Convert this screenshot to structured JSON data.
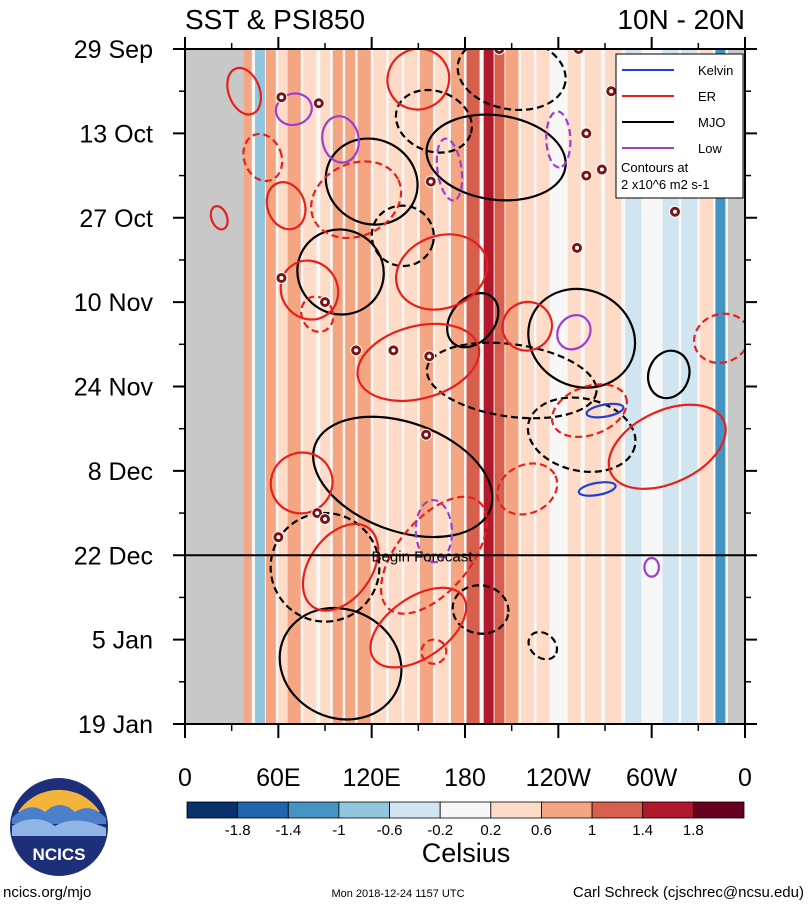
{
  "header": {
    "title": "SST & PSI850",
    "region": "10N - 20N"
  },
  "chart_data": {
    "type": "heatmap",
    "title": "SST & PSI850",
    "region": "10N - 20N",
    "x_ticks": [
      {
        "lon": 0,
        "label": "0"
      },
      {
        "lon": 60,
        "label": "60E"
      },
      {
        "lon": 120,
        "label": "120E"
      },
      {
        "lon": 180,
        "label": "180"
      },
      {
        "lon": 240,
        "label": "120W"
      },
      {
        "lon": 300,
        "label": "60W"
      },
      {
        "lon": 360,
        "label": "0"
      }
    ],
    "xlim": [
      0,
      360
    ],
    "y_ticks": [
      {
        "day": 0,
        "label": "29 Sep"
      },
      {
        "day": 14,
        "label": "13 Oct"
      },
      {
        "day": 28,
        "label": "27 Oct"
      },
      {
        "day": 42,
        "label": "10 Nov"
      },
      {
        "day": 56,
        "label": "24 Nov"
      },
      {
        "day": 70,
        "label": "8 Dec"
      },
      {
        "day": 84,
        "label": "22 Dec"
      },
      {
        "day": 98,
        "label": "5 Jan"
      },
      {
        "day": 112,
        "label": "19 Jan"
      }
    ],
    "ylim": [
      0,
      112
    ],
    "forecast": {
      "day": 84,
      "label": "Begin Forecast"
    },
    "legend": {
      "placement": "top-right",
      "entries": [
        {
          "name": "Kelvin",
          "color": "#1f3fd6",
          "style": "solid"
        },
        {
          "name": "ER",
          "color": "#e8201c",
          "style": "solid"
        },
        {
          "name": "MJO",
          "color": "#000000",
          "style": "solid"
        },
        {
          "name": "Low",
          "color": "#9b3fd0",
          "style": "solid"
        }
      ],
      "note_lines": [
        "Contours at",
        "2 x10^6 m2 s-1"
      ]
    },
    "colorbar": {
      "unit": "Celsius",
      "tick_labels": [
        "-1.8",
        "-1.4",
        "-1",
        "-0.6",
        "-0.2",
        "0.2",
        "0.6",
        "1",
        "1.4",
        "1.8"
      ],
      "colors": [
        "#08306b",
        "#2166ac",
        "#4393c3",
        "#92c5de",
        "#d1e5f0",
        "#f7f7f7",
        "#fddbc7",
        "#f4a582",
        "#d6604d",
        "#b2182b",
        "#67001f"
      ]
    },
    "missing_regions": [
      {
        "lon_start": 0,
        "lon_end": 38,
        "color": "#c8c8c8"
      },
      {
        "lon_start": 349,
        "lon_end": 360,
        "color": "#c8c8c8"
      }
    ],
    "sst_bands": [
      {
        "lon": 40,
        "w": 5,
        "v": 0.6
      },
      {
        "lon": 48,
        "w": 6,
        "v": -1.0
      },
      {
        "lon": 55,
        "w": 6,
        "v": 0.9
      },
      {
        "lon": 63,
        "w": 6,
        "v": 0.4
      },
      {
        "lon": 70,
        "w": 8,
        "v": 0.7
      },
      {
        "lon": 80,
        "w": 8,
        "v": 0.3
      },
      {
        "lon": 90,
        "w": 6,
        "v": 0.5
      },
      {
        "lon": 98,
        "w": 6,
        "v": 0.8
      },
      {
        "lon": 106,
        "w": 6,
        "v": 0.9
      },
      {
        "lon": 115,
        "w": 8,
        "v": 0.6
      },
      {
        "lon": 125,
        "w": 8,
        "v": 0.4
      },
      {
        "lon": 135,
        "w": 8,
        "v": 0.2
      },
      {
        "lon": 145,
        "w": 8,
        "v": 0.5
      },
      {
        "lon": 155,
        "w": 8,
        "v": 0.7
      },
      {
        "lon": 165,
        "w": 8,
        "v": 0.5
      },
      {
        "lon": 175,
        "w": 8,
        "v": 0.9
      },
      {
        "lon": 185,
        "w": 8,
        "v": 1.0
      },
      {
        "lon": 195,
        "w": 6,
        "v": 1.5
      },
      {
        "lon": 202,
        "w": 6,
        "v": 1.3
      },
      {
        "lon": 210,
        "w": 8,
        "v": 0.9
      },
      {
        "lon": 220,
        "w": 8,
        "v": 0.5
      },
      {
        "lon": 230,
        "w": 8,
        "v": 0.3
      },
      {
        "lon": 240,
        "w": 8,
        "v": 0.1
      },
      {
        "lon": 250,
        "w": 8,
        "v": 0.3
      },
      {
        "lon": 262,
        "w": 10,
        "v": 0.5
      },
      {
        "lon": 275,
        "w": 10,
        "v": 0.2
      },
      {
        "lon": 288,
        "w": 10,
        "v": -0.3
      },
      {
        "lon": 300,
        "w": 10,
        "v": -0.1
      },
      {
        "lon": 312,
        "w": 10,
        "v": -0.5
      },
      {
        "lon": 324,
        "w": 10,
        "v": -0.3
      },
      {
        "lon": 335,
        "w": 8,
        "v": 0.2
      },
      {
        "lon": 344,
        "w": 6,
        "v": -1.2
      }
    ],
    "contours": [
      {
        "type": "MJO",
        "dash": false,
        "cx": 120,
        "cy": 22,
        "rx": 30,
        "ry": 7,
        "rot": 25
      },
      {
        "type": "MJO",
        "dash": false,
        "cx": 200,
        "cy": 18,
        "rx": 45,
        "ry": 7,
        "rot": 8
      },
      {
        "type": "MJO",
        "dash": true,
        "cx": 210,
        "cy": 4,
        "rx": 35,
        "ry": 6,
        "rot": 10
      },
      {
        "type": "MJO",
        "dash": true,
        "cx": 160,
        "cy": 12,
        "rx": 25,
        "ry": 5,
        "rot": 20
      },
      {
        "type": "MJO",
        "dash": false,
        "cx": 100,
        "cy": 37,
        "rx": 28,
        "ry": 7,
        "rot": 30
      },
      {
        "type": "MJO",
        "dash": true,
        "cx": 140,
        "cy": 31,
        "rx": 20,
        "ry": 5,
        "rot": 15
      },
      {
        "type": "MJO",
        "dash": false,
        "cx": 185,
        "cy": 45,
        "rx": 14,
        "ry": 5,
        "rot": 40
      },
      {
        "type": "MJO",
        "dash": false,
        "cx": 255,
        "cy": 48,
        "rx": 35,
        "ry": 8,
        "rot": 25
      },
      {
        "type": "MJO",
        "dash": false,
        "cx": 311,
        "cy": 54,
        "rx": 13,
        "ry": 4,
        "rot": 20
      },
      {
        "type": "MJO",
        "dash": true,
        "cx": 210,
        "cy": 55,
        "rx": 55,
        "ry": 6,
        "rot": 8
      },
      {
        "type": "MJO",
        "dash": false,
        "cx": 140,
        "cy": 71,
        "rx": 60,
        "ry": 9,
        "rot": 20
      },
      {
        "type": "MJO",
        "dash": true,
        "cx": 255,
        "cy": 64,
        "rx": 35,
        "ry": 6,
        "rot": 12
      },
      {
        "type": "MJO",
        "dash": true,
        "cx": 90,
        "cy": 86,
        "rx": 35,
        "ry": 9,
        "rot": 35
      },
      {
        "type": "MJO",
        "dash": true,
        "cx": 190,
        "cy": 93,
        "rx": 18,
        "ry": 4,
        "rot": 10
      },
      {
        "type": "MJO",
        "dash": false,
        "cx": 100,
        "cy": 102,
        "rx": 40,
        "ry": 9,
        "rot": 25
      },
      {
        "type": "MJO",
        "dash": true,
        "cx": 230,
        "cy": 99,
        "rx": 10,
        "ry": 2,
        "rot": 40
      },
      {
        "type": "ER",
        "dash": false,
        "cx": 38,
        "cy": 7,
        "rx": 10,
        "ry": 4,
        "rot": -20
      },
      {
        "type": "ER",
        "dash": false,
        "cx": 150,
        "cy": 5,
        "rx": 20,
        "ry": 5,
        "rot": -30
      },
      {
        "type": "ER",
        "dash": true,
        "cx": 50,
        "cy": 18,
        "rx": 12,
        "ry": 4,
        "rot": -20
      },
      {
        "type": "ER",
        "dash": false,
        "cx": 65,
        "cy": 26,
        "rx": 12,
        "ry": 4,
        "rot": -20
      },
      {
        "type": "ER",
        "dash": false,
        "cx": 22,
        "cy": 28,
        "rx": 5,
        "ry": 2,
        "rot": -20
      },
      {
        "type": "ER",
        "dash": true,
        "cx": 110,
        "cy": 25,
        "rx": 30,
        "ry": 6,
        "rot": -25
      },
      {
        "type": "ER",
        "dash": false,
        "cx": 165,
        "cy": 37,
        "rx": 30,
        "ry": 6,
        "rot": -20
      },
      {
        "type": "ER",
        "dash": false,
        "cx": 80,
        "cy": 40,
        "rx": 18,
        "ry": 5,
        "rot": -35
      },
      {
        "type": "ER",
        "dash": true,
        "cx": 85,
        "cy": 44,
        "rx": 10,
        "ry": 3,
        "rot": -25
      },
      {
        "type": "ER",
        "dash": false,
        "cx": 150,
        "cy": 52,
        "rx": 40,
        "ry": 6,
        "rot": -15
      },
      {
        "type": "ER",
        "dash": false,
        "cx": 220,
        "cy": 46,
        "rx": 16,
        "ry": 4,
        "rot": -30
      },
      {
        "type": "ER",
        "dash": true,
        "cx": 260,
        "cy": 60,
        "rx": 25,
        "ry": 4,
        "rot": -20
      },
      {
        "type": "ER",
        "dash": true,
        "cx": 345,
        "cy": 48,
        "rx": 18,
        "ry": 4,
        "rot": -20
      },
      {
        "type": "ER",
        "dash": false,
        "cx": 310,
        "cy": 66,
        "rx": 40,
        "ry": 6,
        "rot": -25
      },
      {
        "type": "ER",
        "dash": false,
        "cx": 75,
        "cy": 72,
        "rx": 20,
        "ry": 5,
        "rot": -30
      },
      {
        "type": "ER",
        "dash": true,
        "cx": 160,
        "cy": 84,
        "rx": 45,
        "ry": 6,
        "rot": -50
      },
      {
        "type": "ER",
        "dash": false,
        "cx": 150,
        "cy": 96,
        "rx": 35,
        "ry": 5,
        "rot": -35
      },
      {
        "type": "ER",
        "dash": false,
        "cx": 100,
        "cy": 86,
        "rx": 20,
        "ry": 8,
        "rot": 35
      },
      {
        "type": "ER",
        "dash": true,
        "cx": 160,
        "cy": 100,
        "rx": 8,
        "ry": 2,
        "rot": -20
      },
      {
        "type": "ER",
        "dash": true,
        "cx": 220,
        "cy": 73,
        "rx": 20,
        "ry": 4,
        "rot": -25
      },
      {
        "type": "Low",
        "dash": false,
        "cx": 70,
        "cy": 10,
        "rx": 10,
        "ry": 3,
        "rot": 75
      },
      {
        "type": "Low",
        "dash": false,
        "cx": 100,
        "cy": 15,
        "rx": 15,
        "ry": 3,
        "rot": 80
      },
      {
        "type": "Low",
        "dash": true,
        "cx": 170,
        "cy": 20,
        "rx": 20,
        "ry": 2,
        "rot": 82
      },
      {
        "type": "Low",
        "dash": true,
        "cx": 240,
        "cy": 15,
        "rx": 18,
        "ry": 2,
        "rot": 88
      },
      {
        "type": "Low",
        "dash": true,
        "cx": 160,
        "cy": 80,
        "rx": 20,
        "ry": 3,
        "rot": 88
      },
      {
        "type": "Low",
        "dash": false,
        "cx": 300,
        "cy": 86,
        "rx": 6,
        "ry": 1.2,
        "rot": 90
      },
      {
        "type": "Low",
        "dash": false,
        "cx": 250,
        "cy": 47,
        "rx": 10,
        "ry": 3,
        "rot": 40
      },
      {
        "type": "Kelvin",
        "dash": false,
        "cx": 270,
        "cy": 60,
        "rx": 12,
        "ry": 1,
        "rot": -10
      },
      {
        "type": "Kelvin",
        "dash": false,
        "cx": 265,
        "cy": 73,
        "rx": 12,
        "ry": 1,
        "rot": -10
      }
    ],
    "storms": [
      {
        "lon": 62,
        "day": 8
      },
      {
        "lon": 86,
        "day": 9
      },
      {
        "lon": 158,
        "day": 22
      },
      {
        "lon": 62,
        "day": 38
      },
      {
        "lon": 90,
        "day": 42
      },
      {
        "lon": 110,
        "day": 50
      },
      {
        "lon": 134,
        "day": 50
      },
      {
        "lon": 157,
        "day": 51
      },
      {
        "lon": 155,
        "day": 64
      },
      {
        "lon": 85,
        "day": 77
      },
      {
        "lon": 90,
        "day": 78
      },
      {
        "lon": 60,
        "day": 81
      },
      {
        "lon": 252,
        "day": 33
      },
      {
        "lon": 258,
        "day": 21
      },
      {
        "lon": 268,
        "day": 20
      },
      {
        "lon": 258,
        "day": 14
      },
      {
        "lon": 274,
        "day": 7
      },
      {
        "lon": 315,
        "day": 27
      },
      {
        "lon": 253,
        "day": 0
      },
      {
        "lon": 202,
        "day": 0
      }
    ]
  },
  "footer": {
    "logo_text": "NCICS",
    "website": "ncics.org/mjo",
    "timestamp": "Mon 2018-12-24 1157 UTC",
    "author": "Carl Schreck (cjschrec@ncsu.edu)"
  }
}
